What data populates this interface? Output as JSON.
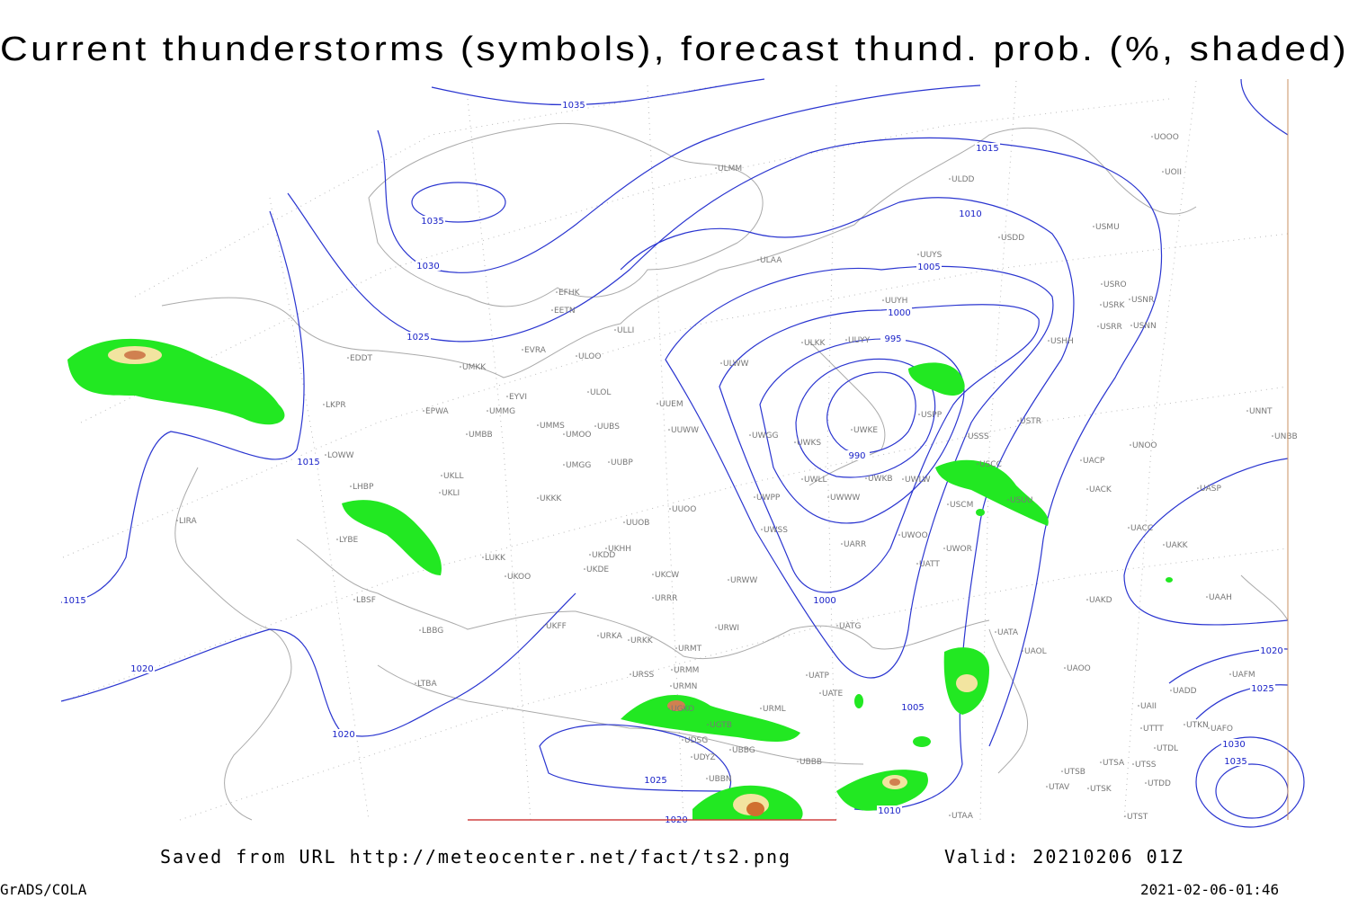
{
  "title": "Current thunderstorms (symbols), forecast thund. prob. (%, shaded)",
  "stations": [
    "ULMM",
    "ULDD",
    "UOOO",
    "UOII",
    "USMU",
    "USDD",
    "ULAA",
    "UUYS",
    "USRO",
    "USRK",
    "USNR",
    "USRR",
    "USNN",
    "UUYH",
    "USHH",
    "ULWW",
    "UUYY",
    "ULKK",
    "EFHK",
    "EETN",
    "ULLI",
    "EVRA",
    "ULOO",
    "UMKK",
    "EYVI",
    "ULOL",
    "UMMG",
    "EPWA",
    "UMMS",
    "UMOO",
    "UUBS",
    "UMBB",
    "UUEM",
    "UUWW",
    "UWGG",
    "UWKS",
    "UWKE",
    "USSS",
    "USPP",
    "USTR",
    "UNOO",
    "UNNT",
    "UNBB",
    "UMGG",
    "UUBP",
    "USCC",
    "UACP",
    "UACK",
    "UASP",
    "UKLL",
    "UKLI",
    "UKKK",
    "UWWW",
    "UWKB",
    "UWLL",
    "UWLW",
    "USUU",
    "USCM",
    "UUOO",
    "UWPP",
    "UUOB",
    "UWSS",
    "UWOO",
    "UWOR",
    "UACC",
    "UAKK",
    "UARR",
    "UKHH",
    "UKDD",
    "UKDE",
    "UKOO",
    "UKCW",
    "URWW",
    "UATT",
    "UAKD",
    "UAAH",
    "URRR",
    "URWI",
    "UKFF",
    "URKA",
    "URKK",
    "UATG",
    "UATA",
    "UAOL",
    "UAOO",
    "URMT",
    "URMM",
    "URMN",
    "URSS",
    "UATE",
    "UATP",
    "URML",
    "LKPR",
    "EDDT",
    "LOWW",
    "LHBP",
    "LIRA",
    "LYBE",
    "LUKK",
    "LBSF",
    "LBBG",
    "LTBA",
    "UAFM",
    "UADD",
    "UAII",
    "UTTT",
    "UTKN",
    "UAFO",
    "UTDL",
    "UTSA",
    "UTSS",
    "UTSB",
    "UTDD",
    "UTAV",
    "UTSK",
    "UTST",
    "UTAA",
    "UBBB",
    "UBBG",
    "UDSG",
    "UGTB",
    "UGKO",
    "UDYZ",
    "UBBN"
  ],
  "isobar_labels": [
    "1035",
    "1035",
    "1030",
    "1025",
    "1015",
    "1010",
    "1005",
    "1000",
    "995",
    "990",
    "1015",
    "1015",
    "1000",
    "1020",
    "1020",
    "1005",
    "1025",
    "1020",
    "1010",
    "1020",
    "1025",
    "1030",
    "1035"
  ],
  "footer": {
    "source": "Saved from URL http://meteocenter.net/fact/ts2.png",
    "valid": "Valid: 20210206 01Z",
    "credit": "GrADS/COLA",
    "timestamp": "2021-02-06-01:46"
  }
}
